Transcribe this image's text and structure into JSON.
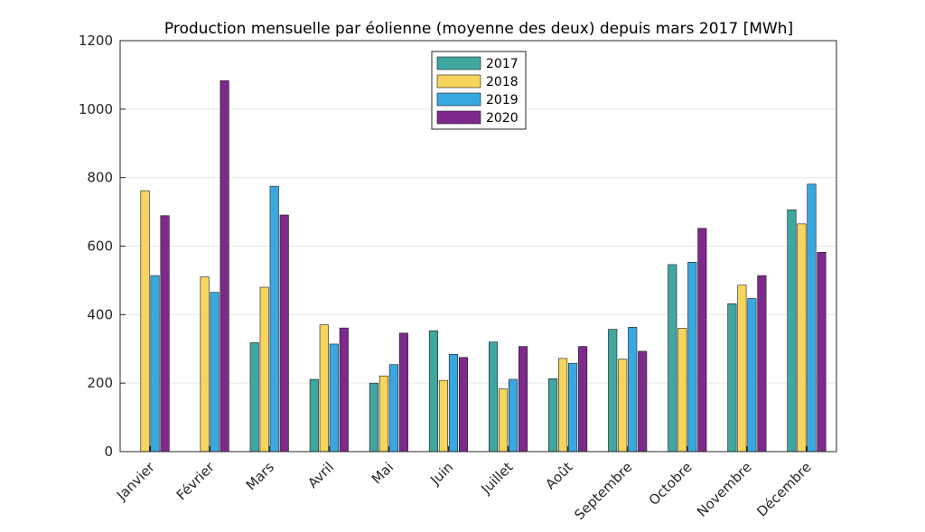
{
  "chart_data": {
    "type": "bar",
    "title": "Production mensuelle par éolienne (moyenne des deux) depuis mars 2017 [MWh]",
    "xlabel": "",
    "ylabel": "",
    "ylim": [
      0,
      1200
    ],
    "yticks": [
      0,
      200,
      400,
      600,
      800,
      1000,
      1200
    ],
    "grid": true,
    "legend_position": "top-center",
    "categories": [
      "Janvier",
      "Février",
      "Mars",
      "Avril",
      "Mai",
      "Juin",
      "Juillet",
      "Août",
      "Septembre",
      "Octobre",
      "Novembre",
      "Décembre"
    ],
    "series": [
      {
        "name": "2017",
        "color": "#3fa7a0",
        "values": [
          null,
          null,
          318,
          211,
          200,
          353,
          320,
          213,
          357,
          546,
          432,
          706
        ]
      },
      {
        "name": "2018",
        "color": "#f5d55e",
        "values": [
          762,
          510,
          480,
          370,
          221,
          208,
          183,
          272,
          270,
          360,
          486,
          665
        ]
      },
      {
        "name": "2019",
        "color": "#3aa8e0",
        "values": [
          514,
          465,
          775,
          314,
          254,
          284,
          211,
          258,
          363,
          553,
          447,
          781
        ]
      },
      {
        "name": "2020",
        "color": "#7d2a8c",
        "values": [
          689,
          1083,
          691,
          361,
          346,
          275,
          307,
          307,
          293,
          652,
          514,
          582
        ]
      }
    ]
  }
}
